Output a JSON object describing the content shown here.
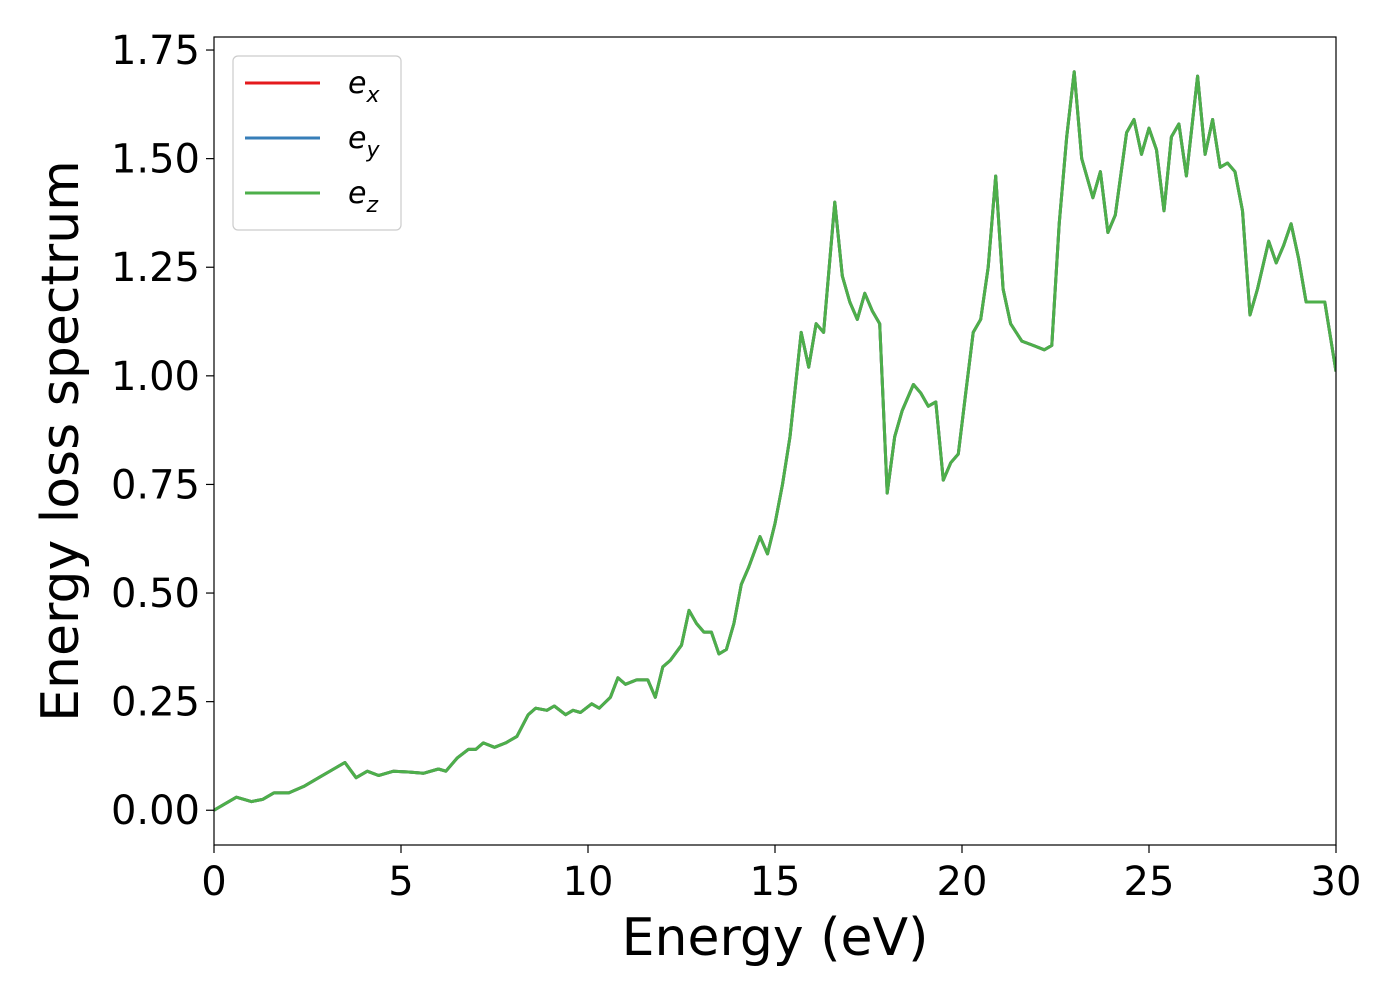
{
  "chart_data": {
    "type": "line",
    "xlabel": "Energy (eV)",
    "ylabel": "Energy loss spectrum",
    "xlim": [
      0,
      30
    ],
    "ylim": [
      -0.08,
      1.78
    ],
    "grid": false,
    "legend_placement": "top-left",
    "x_ticks": [
      "0",
      "5",
      "10",
      "15",
      "20",
      "25",
      "30"
    ],
    "y_ticks": [
      "0.00",
      "0.25",
      "0.50",
      "0.75",
      "1.00",
      "1.25",
      "1.50",
      "1.75"
    ],
    "x_tick_values": [
      0,
      5,
      10,
      15,
      20,
      25,
      30
    ],
    "y_tick_values": [
      0,
      0.25,
      0.5,
      0.75,
      1.0,
      1.25,
      1.5,
      1.75
    ],
    "x": [
      0,
      0.3,
      0.6,
      1.0,
      1.3,
      1.6,
      2.0,
      2.4,
      2.8,
      3.2,
      3.5,
      3.8,
      4.1,
      4.4,
      4.8,
      5.2,
      5.6,
      6.0,
      6.2,
      6.5,
      6.8,
      7.0,
      7.2,
      7.5,
      7.8,
      8.1,
      8.4,
      8.6,
      8.9,
      9.1,
      9.4,
      9.6,
      9.8,
      10.1,
      10.3,
      10.6,
      10.8,
      11.0,
      11.3,
      11.6,
      11.8,
      12.0,
      12.2,
      12.5,
      12.7,
      12.9,
      13.1,
      13.3,
      13.5,
      13.7,
      13.9,
      14.1,
      14.3,
      14.6,
      14.8,
      15.0,
      15.2,
      15.4,
      15.7,
      15.9,
      16.1,
      16.3,
      16.6,
      16.8,
      17.0,
      17.2,
      17.4,
      17.6,
      17.8,
      18.0,
      18.2,
      18.4,
      18.7,
      18.9,
      19.1,
      19.3,
      19.5,
      19.7,
      19.9,
      20.1,
      20.3,
      20.5,
      20.7,
      20.9,
      21.1,
      21.3,
      21.6,
      21.9,
      22.2,
      22.4,
      22.6,
      22.8,
      23.0,
      23.2,
      23.5,
      23.7,
      23.9,
      24.1,
      24.4,
      24.6,
      24.8,
      25.0,
      25.2,
      25.4,
      25.6,
      25.8,
      26.0,
      26.3,
      26.5,
      26.7,
      26.9,
      27.1,
      27.3,
      27.5,
      27.7,
      27.9,
      28.2,
      28.4,
      28.6,
      28.8,
      29.0,
      29.2,
      29.5,
      29.7,
      30.0
    ],
    "series": [
      {
        "name": "e",
        "subscript": "x",
        "color": "#e41a1c",
        "values": [
          0,
          0.015,
          0.03,
          0.02,
          0.025,
          0.04,
          0.04,
          0.055,
          0.075,
          0.095,
          0.11,
          0.075,
          0.09,
          0.08,
          0.09,
          0.088,
          0.085,
          0.095,
          0.09,
          0.12,
          0.14,
          0.14,
          0.155,
          0.145,
          0.155,
          0.17,
          0.22,
          0.235,
          0.23,
          0.24,
          0.22,
          0.23,
          0.225,
          0.245,
          0.235,
          0.26,
          0.305,
          0.29,
          0.3,
          0.3,
          0.26,
          0.33,
          0.345,
          0.38,
          0.46,
          0.43,
          0.41,
          0.41,
          0.36,
          0.37,
          0.43,
          0.52,
          0.56,
          0.63,
          0.59,
          0.66,
          0.75,
          0.86,
          1.1,
          1.02,
          1.12,
          1.1,
          1.4,
          1.23,
          1.17,
          1.13,
          1.19,
          1.15,
          1.12,
          0.73,
          0.86,
          0.92,
          0.98,
          0.96,
          0.93,
          0.94,
          0.76,
          0.8,
          0.82,
          0.96,
          1.1,
          1.13,
          1.25,
          1.46,
          1.2,
          1.12,
          1.08,
          1.07,
          1.06,
          1.07,
          1.35,
          1.55,
          1.7,
          1.5,
          1.41,
          1.47,
          1.33,
          1.37,
          1.56,
          1.59,
          1.51,
          1.57,
          1.52,
          1.38,
          1.55,
          1.58,
          1.46,
          1.69,
          1.51,
          1.59,
          1.48,
          1.49,
          1.47,
          1.38,
          1.14,
          1.2,
          1.31,
          1.26,
          1.3,
          1.35,
          1.27,
          1.17,
          1.17,
          1.17,
          1.01
        ]
      },
      {
        "name": "e",
        "subscript": "y",
        "color": "#377eb8",
        "values": [
          0,
          0.015,
          0.03,
          0.02,
          0.025,
          0.04,
          0.04,
          0.055,
          0.075,
          0.095,
          0.11,
          0.075,
          0.09,
          0.08,
          0.09,
          0.088,
          0.085,
          0.095,
          0.09,
          0.12,
          0.14,
          0.14,
          0.155,
          0.145,
          0.155,
          0.17,
          0.22,
          0.235,
          0.23,
          0.24,
          0.22,
          0.23,
          0.225,
          0.245,
          0.235,
          0.26,
          0.305,
          0.29,
          0.3,
          0.3,
          0.26,
          0.33,
          0.345,
          0.38,
          0.46,
          0.43,
          0.41,
          0.41,
          0.36,
          0.37,
          0.43,
          0.52,
          0.56,
          0.63,
          0.59,
          0.66,
          0.75,
          0.86,
          1.1,
          1.02,
          1.12,
          1.1,
          1.4,
          1.23,
          1.17,
          1.13,
          1.19,
          1.15,
          1.12,
          0.73,
          0.86,
          0.92,
          0.98,
          0.96,
          0.93,
          0.94,
          0.76,
          0.8,
          0.82,
          0.96,
          1.1,
          1.13,
          1.25,
          1.46,
          1.2,
          1.12,
          1.08,
          1.07,
          1.06,
          1.07,
          1.35,
          1.55,
          1.7,
          1.5,
          1.41,
          1.47,
          1.33,
          1.37,
          1.56,
          1.59,
          1.51,
          1.57,
          1.52,
          1.38,
          1.55,
          1.58,
          1.46,
          1.69,
          1.51,
          1.59,
          1.48,
          1.49,
          1.47,
          1.38,
          1.14,
          1.2,
          1.31,
          1.26,
          1.3,
          1.35,
          1.27,
          1.17,
          1.17,
          1.17,
          1.01
        ]
      },
      {
        "name": "e",
        "subscript": "z",
        "color": "#4daf4a",
        "values": [
          0,
          0.015,
          0.03,
          0.02,
          0.025,
          0.04,
          0.04,
          0.055,
          0.075,
          0.095,
          0.11,
          0.075,
          0.09,
          0.08,
          0.09,
          0.088,
          0.085,
          0.095,
          0.09,
          0.12,
          0.14,
          0.14,
          0.155,
          0.145,
          0.155,
          0.17,
          0.22,
          0.235,
          0.23,
          0.24,
          0.22,
          0.23,
          0.225,
          0.245,
          0.235,
          0.26,
          0.305,
          0.29,
          0.3,
          0.3,
          0.26,
          0.33,
          0.345,
          0.38,
          0.46,
          0.43,
          0.41,
          0.41,
          0.36,
          0.37,
          0.43,
          0.52,
          0.56,
          0.63,
          0.59,
          0.66,
          0.75,
          0.86,
          1.1,
          1.02,
          1.12,
          1.1,
          1.4,
          1.23,
          1.17,
          1.13,
          1.19,
          1.15,
          1.12,
          0.73,
          0.86,
          0.92,
          0.98,
          0.96,
          0.93,
          0.94,
          0.76,
          0.8,
          0.82,
          0.96,
          1.1,
          1.13,
          1.25,
          1.46,
          1.2,
          1.12,
          1.08,
          1.07,
          1.06,
          1.07,
          1.35,
          1.55,
          1.7,
          1.5,
          1.41,
          1.47,
          1.33,
          1.37,
          1.56,
          1.59,
          1.51,
          1.57,
          1.52,
          1.38,
          1.55,
          1.58,
          1.46,
          1.69,
          1.51,
          1.59,
          1.48,
          1.49,
          1.47,
          1.38,
          1.14,
          1.2,
          1.31,
          1.26,
          1.3,
          1.35,
          1.27,
          1.17,
          1.17,
          1.17,
          1.01
        ]
      }
    ]
  }
}
